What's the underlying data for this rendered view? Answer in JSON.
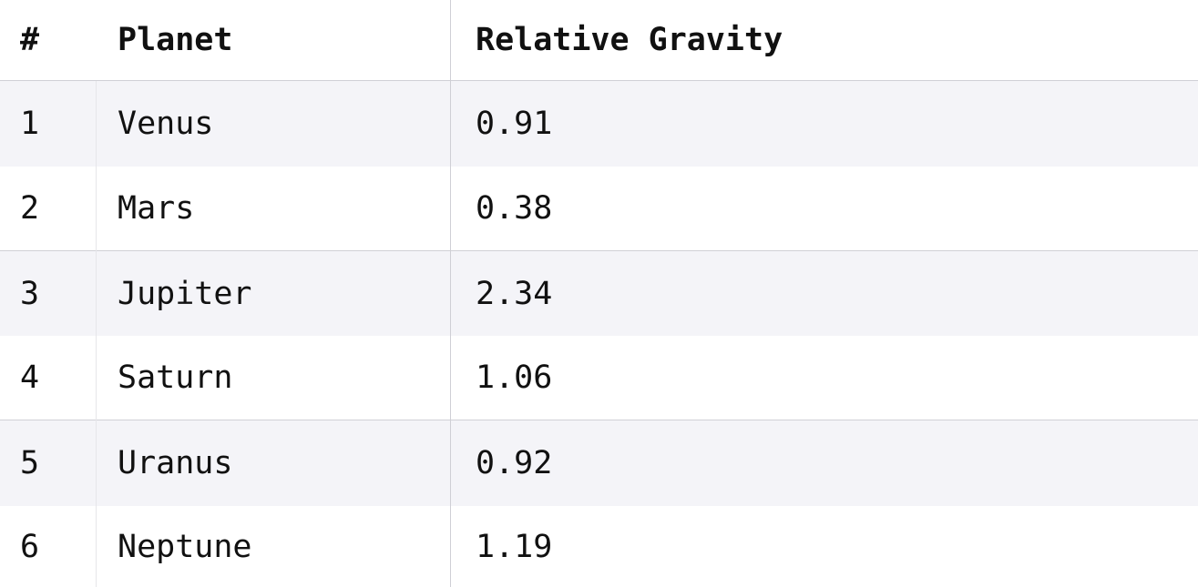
{
  "table": {
    "headers": {
      "num": "#",
      "planet": "Planet",
      "gravity": "Relative Gravity"
    },
    "rows": [
      {
        "num": "1",
        "planet": "Venus",
        "gravity": "0.91"
      },
      {
        "num": "2",
        "planet": "Mars",
        "gravity": "0.38"
      },
      {
        "num": "3",
        "planet": "Jupiter",
        "gravity": "2.34"
      },
      {
        "num": "4",
        "planet": "Saturn",
        "gravity": "1.06"
      },
      {
        "num": "5",
        "planet": "Uranus",
        "gravity": "0.92"
      },
      {
        "num": "6",
        "planet": "Neptune",
        "gravity": "1.19"
      }
    ]
  },
  "colors": {
    "row_stripe": "#f4f4f8",
    "row_plain": "#ffffff",
    "text": "#111111"
  }
}
